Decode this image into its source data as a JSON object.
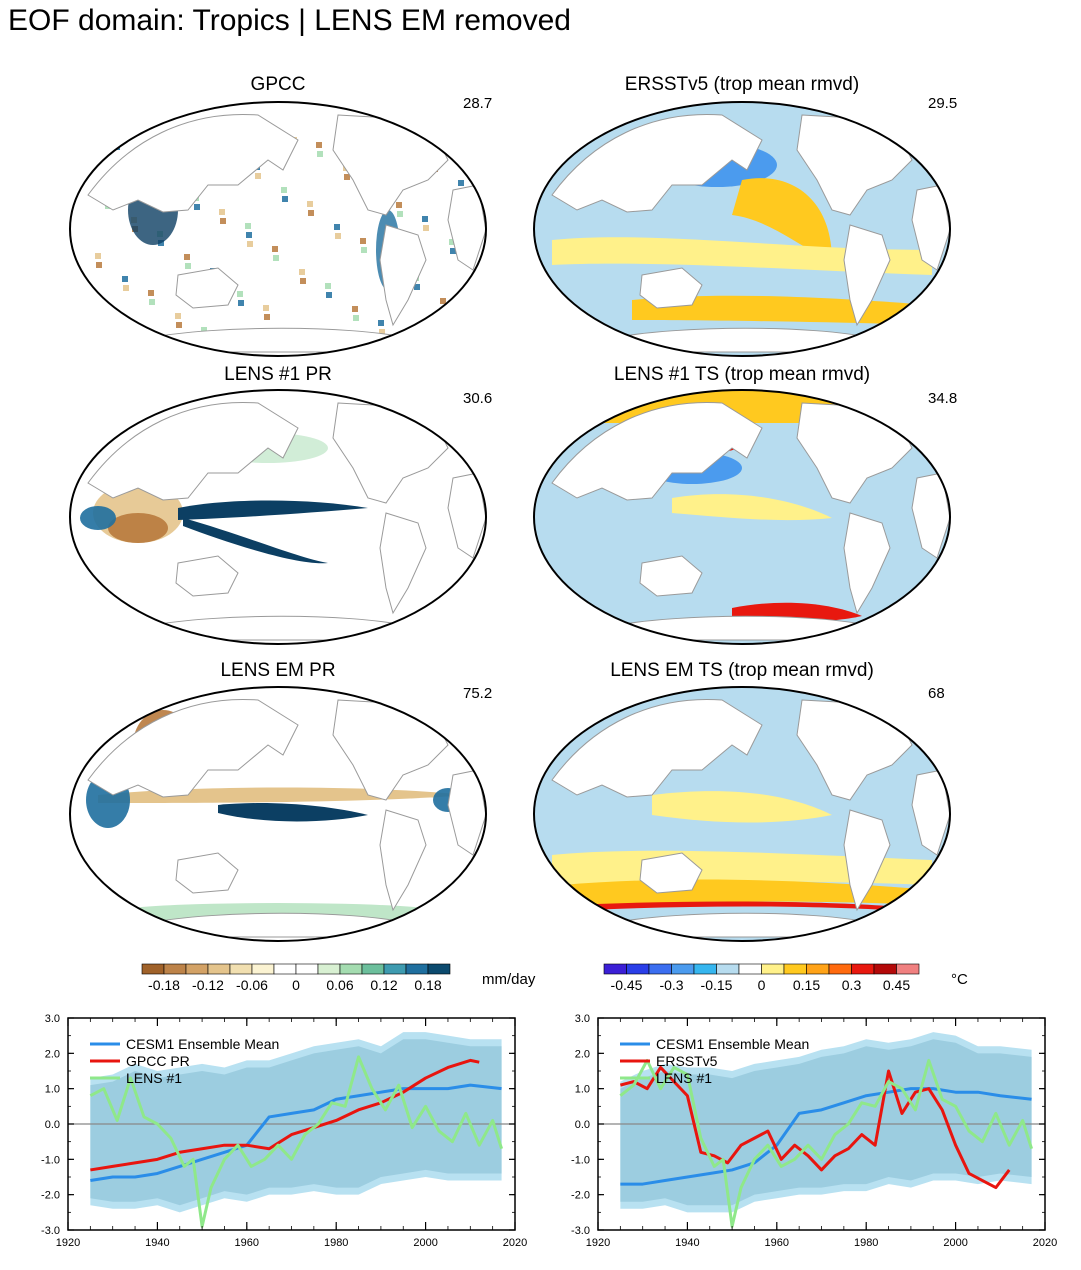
{
  "page": {
    "title": "EOF domain: Tropics | LENS EM removed"
  },
  "maps": [
    {
      "id": "gpcc",
      "title": "GPCC",
      "value": "28.7",
      "variable": "pr"
    },
    {
      "id": "ersst",
      "title": "ERSSTv5 (trop mean rmvd)",
      "value": "29.5",
      "variable": "sst"
    },
    {
      "id": "lens1pr",
      "title": "LENS #1 PR",
      "value": "30.6",
      "variable": "pr"
    },
    {
      "id": "lens1ts",
      "title": "LENS #1 TS (trop mean rmvd)",
      "value": "34.8",
      "variable": "sst"
    },
    {
      "id": "lensempr",
      "title": "LENS EM PR",
      "value": "75.2",
      "variable": "pr"
    },
    {
      "id": "lensemts",
      "title": "LENS EM TS (trop mean rmvd)",
      "value": "68",
      "variable": "sst"
    }
  ],
  "colorbars": {
    "pr": {
      "unit": "mm/day",
      "colors": [
        "#a0622a",
        "#bd8349",
        "#d3a266",
        "#e4c48c",
        "#f1dfb0",
        "#fbf3d2",
        "#ffffff",
        "#ffffff",
        "#d8f0d2",
        "#a4dcb0",
        "#6cbf9c",
        "#3e9bb0",
        "#1f6f9f",
        "#0c4a6e"
      ],
      "labels": [
        "-0.18",
        "-0.12",
        "-0.06",
        "0",
        "0.06",
        "0.12",
        "0.18"
      ]
    },
    "sst": {
      "unit": "°C",
      "colors": [
        "#3b1fd6",
        "#2a3ee8",
        "#3b6ef0",
        "#4b9bee",
        "#36b6ef",
        "#b7dcef",
        "#ffffff",
        "#fff18a",
        "#ffc91f",
        "#ffa318",
        "#ff6a0e",
        "#e8180f",
        "#b30909",
        "#f08080"
      ],
      "labels": [
        "-0.45",
        "-0.3",
        "-0.15",
        "0",
        "0.15",
        "0.3",
        "0.45"
      ]
    }
  },
  "chart_data": [
    {
      "type": "line",
      "x_range": [
        1920,
        2020
      ],
      "ylim": [
        -3.0,
        3.0
      ],
      "yticks": [
        "3.0",
        "2.0",
        "1.0",
        "0.0",
        "-1.0",
        "-2.0",
        "-3.0"
      ],
      "xticks": [
        "1920",
        "1940",
        "1960",
        "1980",
        "2000",
        "2020"
      ],
      "legend_position": "top-left",
      "band": {
        "name": "Ensemble spread",
        "x": [
          1925,
          1930,
          1935,
          1940,
          1945,
          1950,
          1955,
          1960,
          1965,
          1970,
          1975,
          1980,
          1985,
          1990,
          1995,
          2000,
          2005,
          2010,
          2017
        ],
        "upper": [
          1.3,
          1.4,
          1.7,
          1.5,
          1.6,
          1.7,
          1.6,
          1.8,
          1.8,
          2.0,
          2.2,
          2.3,
          2.4,
          2.2,
          2.6,
          2.6,
          2.5,
          2.4,
          2.4
        ],
        "lower": [
          -2.3,
          -2.4,
          -2.4,
          -2.3,
          -2.5,
          -2.3,
          -2.1,
          -2.2,
          -2.0,
          -2.0,
          -1.9,
          -2.0,
          -2.0,
          -1.7,
          -1.6,
          -1.5,
          -1.6,
          -1.6,
          -1.6
        ]
      },
      "series": [
        {
          "name": "CESM1 Ensemble Mean",
          "color": "#2a8de8",
          "x": [
            1925,
            1930,
            1935,
            1940,
            1945,
            1950,
            1955,
            1960,
            1965,
            1970,
            1975,
            1980,
            1985,
            1990,
            1995,
            2000,
            2005,
            2010,
            2017
          ],
          "values": [
            -1.6,
            -1.5,
            -1.5,
            -1.4,
            -1.2,
            -1.0,
            -0.8,
            -0.6,
            0.2,
            0.3,
            0.4,
            0.7,
            0.8,
            0.9,
            1.0,
            1.0,
            1.0,
            1.1,
            1.0
          ]
        },
        {
          "name": "GPCC PR",
          "color": "#e8150f",
          "x": [
            1925,
            1930,
            1935,
            1940,
            1945,
            1950,
            1955,
            1960,
            1965,
            1970,
            1975,
            1980,
            1985,
            1990,
            1995,
            2000,
            2005,
            2010,
            2012
          ],
          "values": [
            -1.3,
            -1.2,
            -1.1,
            -1.0,
            -0.8,
            -0.7,
            -0.6,
            -0.6,
            -0.7,
            -0.3,
            -0.1,
            0.1,
            0.4,
            0.6,
            0.9,
            1.3,
            1.6,
            1.8,
            1.75
          ]
        },
        {
          "name": "LENS #1",
          "color": "#8fe88a",
          "x": [
            1925,
            1928,
            1931,
            1934,
            1937,
            1940,
            1943,
            1946,
            1948,
            1950,
            1952,
            1955,
            1958,
            1961,
            1964,
            1967,
            1970,
            1973,
            1976,
            1979,
            1982,
            1985,
            1988,
            1991,
            1994,
            1997,
            2000,
            2003,
            2006,
            2009,
            2012,
            2015,
            2017
          ],
          "values": [
            0.8,
            1.0,
            0.1,
            1.3,
            0.2,
            0.0,
            -0.4,
            -1.2,
            -1.0,
            -2.9,
            -1.8,
            -1.0,
            -0.6,
            -1.2,
            -1.0,
            -0.6,
            -1.0,
            -0.3,
            0.0,
            0.6,
            0.5,
            1.9,
            1.0,
            0.4,
            1.1,
            -0.1,
            0.5,
            -0.2,
            -0.5,
            0.3,
            -0.6,
            0.1,
            -0.7
          ]
        }
      ]
    },
    {
      "type": "line",
      "x_range": [
        1920,
        2020
      ],
      "ylim": [
        -3.0,
        3.0
      ],
      "yticks": [
        "3.0",
        "2.0",
        "1.0",
        "0.0",
        "-1.0",
        "-2.0",
        "-3.0"
      ],
      "xticks": [
        "1920",
        "1940",
        "1960",
        "1980",
        "2000",
        "2020"
      ],
      "legend_position": "top-left",
      "band": {
        "name": "Ensemble spread",
        "x": [
          1925,
          1930,
          1935,
          1940,
          1945,
          1950,
          1955,
          1960,
          1965,
          1970,
          1975,
          1980,
          1985,
          1990,
          1995,
          2000,
          2005,
          2010,
          2017
        ],
        "upper": [
          1.2,
          1.5,
          1.7,
          1.6,
          1.6,
          1.5,
          1.7,
          1.8,
          1.9,
          2.1,
          2.2,
          2.4,
          2.3,
          2.4,
          2.6,
          2.5,
          2.2,
          2.2,
          2.1
        ],
        "lower": [
          -2.4,
          -2.4,
          -2.3,
          -2.5,
          -2.5,
          -2.5,
          -2.2,
          -2.1,
          -2.0,
          -2.0,
          -1.9,
          -1.9,
          -1.7,
          -1.8,
          -1.6,
          -1.6,
          -1.7,
          -1.6,
          -1.7
        ]
      },
      "series": [
        {
          "name": "CESM1 Ensemble Mean",
          "color": "#2a8de8",
          "x": [
            1925,
            1930,
            1935,
            1940,
            1945,
            1950,
            1955,
            1960,
            1965,
            1970,
            1975,
            1980,
            1985,
            1990,
            1995,
            2000,
            2005,
            2010,
            2017
          ],
          "values": [
            -1.7,
            -1.7,
            -1.6,
            -1.5,
            -1.4,
            -1.3,
            -1.1,
            -0.6,
            0.3,
            0.4,
            0.6,
            0.8,
            0.9,
            1.0,
            1.0,
            0.9,
            0.9,
            0.8,
            0.7
          ]
        },
        {
          "name": "ERSSTv5",
          "color": "#e8150f",
          "x": [
            1925,
            1928,
            1931,
            1934,
            1937,
            1940,
            1943,
            1946,
            1949,
            1952,
            1955,
            1958,
            1961,
            1964,
            1967,
            1970,
            1973,
            1976,
            1979,
            1982,
            1985,
            1988,
            1991,
            1994,
            1997,
            2000,
            2003,
            2006,
            2009,
            2012
          ],
          "values": [
            1.1,
            1.2,
            1.0,
            1.6,
            1.2,
            0.8,
            -0.8,
            -0.9,
            -1.1,
            -0.6,
            -0.4,
            -0.2,
            -1.0,
            -0.6,
            -0.9,
            -1.3,
            -0.9,
            -0.7,
            -0.3,
            -0.6,
            1.5,
            0.3,
            0.9,
            1.0,
            0.4,
            -0.6,
            -1.4,
            -1.6,
            -1.8,
            -1.3
          ]
        },
        {
          "name": "LENS #1",
          "color": "#8fe88a",
          "x": [
            1925,
            1928,
            1931,
            1934,
            1937,
            1940,
            1943,
            1946,
            1948,
            1950,
            1952,
            1955,
            1958,
            1961,
            1964,
            1967,
            1970,
            1973,
            1976,
            1979,
            1982,
            1985,
            1988,
            1991,
            1994,
            1997,
            2000,
            2003,
            2006,
            2009,
            2012,
            2015,
            2017
          ],
          "values": [
            0.8,
            1.1,
            1.8,
            1.0,
            1.6,
            1.4,
            -0.4,
            -1.2,
            -1.0,
            -2.9,
            -1.8,
            -1.0,
            -0.6,
            -1.2,
            -1.0,
            -0.6,
            -1.0,
            -0.3,
            0.0,
            0.6,
            0.5,
            1.2,
            1.0,
            0.4,
            1.8,
            0.7,
            0.5,
            -0.2,
            -0.5,
            0.3,
            -0.6,
            0.1,
            -0.7
          ]
        }
      ]
    }
  ]
}
